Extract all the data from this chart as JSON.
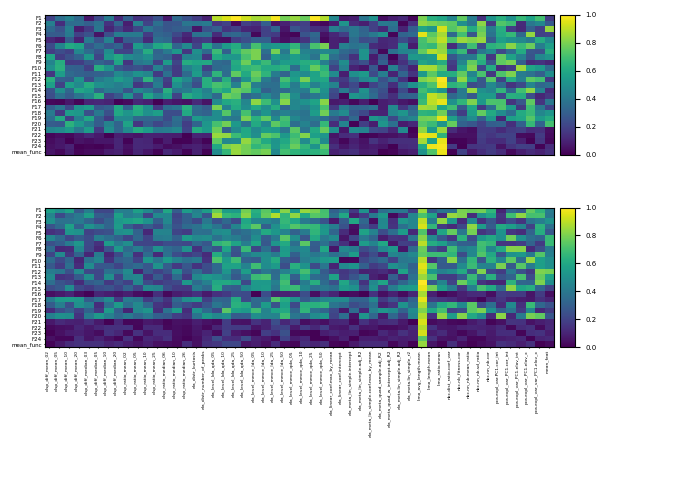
{
  "row_labels": [
    "F1",
    "F2",
    "F3",
    "F4",
    "F5",
    "F6",
    "F7",
    "F8",
    "F9",
    "F10",
    "F11",
    "F12",
    "F13",
    "F14",
    "F15",
    "F16",
    "F17",
    "F18",
    "F19",
    "F20",
    "F21",
    "F22",
    "F23",
    "F24",
    "mean_func"
  ],
  "xlabels": [
    "disp_diff_mean_02",
    "disp_diff_mean_05",
    "disp_diff_mean_10",
    "disp_diff_mean_20",
    "disp_diff_median_03",
    "disp_diff_median_05",
    "disp_diff_median_10",
    "disp_diff_median_20",
    "disp_ratio_mean_02",
    "disp_ratio_mean_05",
    "disp_ratio_mean_10",
    "disp_ratio_mean_25",
    "disp_ratio_median_06",
    "disp_ratio_median_10",
    "disp_ratio_median_26",
    "ela_distr_kurtosis",
    "ela_distr_number_of_peaks",
    "ela_level_lda_qda_05",
    "ela_level_lda_qda_10",
    "ela_level_lda_qda_25",
    "ela_level_lda_qda_50",
    "ela_level_mmce_lda_05",
    "ela_level_mmce_lda_10",
    "ela_level_mmce_lda_25",
    "ela_level_mmce_lda_50",
    "ela_level_mmce_qda_05",
    "ela_level_mmce_qda_10",
    "ela_level_mmce_qda_25",
    "ela_level_mmce_qda_50",
    "ela_linear_coef.max_by_mean",
    "ela_linear_coef.intercept",
    "ela_meta_lin_simple.intercept",
    "ela_meta_lin_simple.adj_R2",
    "ela_meta_lin_simple.coef.max_by_mean",
    "ela_meta_quad_sample.adj_R2",
    "ela_meta_quad_w_intercept.adj_R2",
    "ela_meta.lin_simple.adj_R2",
    "ela_meta.lin_simple_r2",
    "limo_avg_length.mean",
    "limo_length.mean",
    "limo_ratio.mean",
    "nbc.dist_ratio.coef_var",
    "nbc.nb_fitness.cor",
    "nbc.nn_nb.mean_ratio",
    "nbc.nn_nb.sd_ratio",
    "nbc.nn_nb.cor",
    "pca.expl_var.PC1.cor_int",
    "pca.expl_var_PC1.cor_int",
    "pca.expl_var_PC1.elov_int",
    "pca.expl_var_PC1.elov_x",
    "pca.expl_var_var_PC1.elov_x",
    "mean_feat"
  ],
  "n_rows": 25,
  "cmap": "viridis",
  "vmin": 0.0,
  "vmax": 1.0
}
